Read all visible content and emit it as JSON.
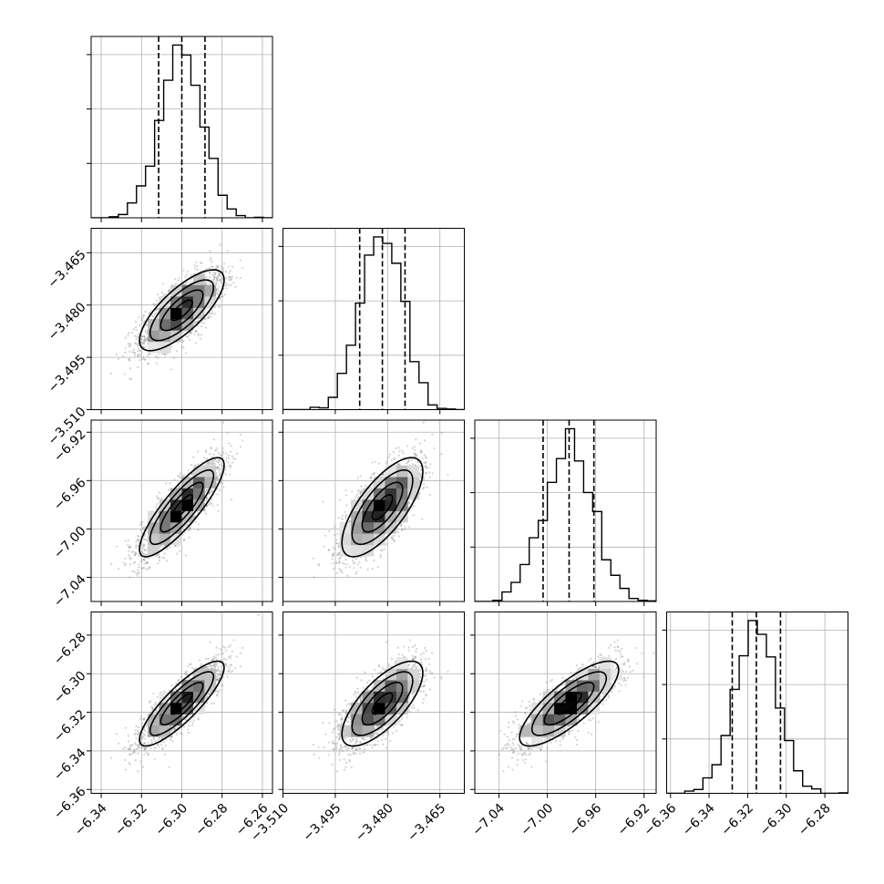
{
  "chart_data": {
    "type": "corner",
    "grid": true,
    "colors": {
      "line": "#000000",
      "density": "#000000",
      "points": "#808080",
      "grid": "#b0b0b0"
    },
    "parameters": [
      {
        "mean": -6.3,
        "sd": 0.0105,
        "range": [
          -6.345,
          -6.255
        ],
        "ticks": [
          -6.34,
          -6.32,
          -6.3,
          -6.28,
          -6.26
        ],
        "tick_labels": [
          "−6.34",
          "−6.32",
          "−6.30",
          "−6.28",
          "−6.26"
        ],
        "quantiles": [
          -6.3115,
          -6.3,
          -6.2885
        ]
      },
      {
        "mean": -3.4815,
        "sd": 0.0058,
        "range": [
          -3.51,
          -3.458
        ],
        "ticks": [
          -3.51,
          -3.495,
          -3.48,
          -3.465
        ],
        "tick_labels": [
          "−3.510",
          "−3.495",
          "−3.480",
          "−3.465"
        ],
        "quantiles": [
          -3.488,
          -3.4815,
          -3.475
        ]
      },
      {
        "mean": -6.982,
        "sd": 0.0205,
        "range": [
          -7.06,
          -6.91
        ],
        "ticks": [
          -7.04,
          -7.0,
          -6.96,
          -6.92
        ],
        "tick_labels": [
          "−7.04",
          "−7.00",
          "−6.96",
          "−6.92"
        ],
        "quantiles": [
          -7.0035,
          -6.982,
          -6.9615
        ]
      },
      {
        "mean": -6.3155,
        "sd": 0.011,
        "range": [
          -6.362,
          -6.268
        ],
        "ticks": [
          -6.36,
          -6.34,
          -6.32,
          -6.3,
          -6.28
        ],
        "tick_labels": [
          "−6.36",
          "−6.34",
          "−6.32",
          "−6.30",
          "−6.28"
        ],
        "quantiles": [
          -6.328,
          -6.3155,
          -6.303
        ]
      }
    ],
    "correlations": [
      [
        1.0,
        0.75,
        0.85,
        0.85
      ],
      [
        0.75,
        1.0,
        0.72,
        0.72
      ],
      [
        0.85,
        0.72,
        1.0,
        0.8
      ],
      [
        0.85,
        0.72,
        0.8,
        1.0
      ]
    ],
    "histogram_bins": 20,
    "density_bins": 16,
    "contour_levels_sigma": [
      0.5,
      1.0,
      1.5,
      2.0
    ],
    "sample_count": 1800
  }
}
